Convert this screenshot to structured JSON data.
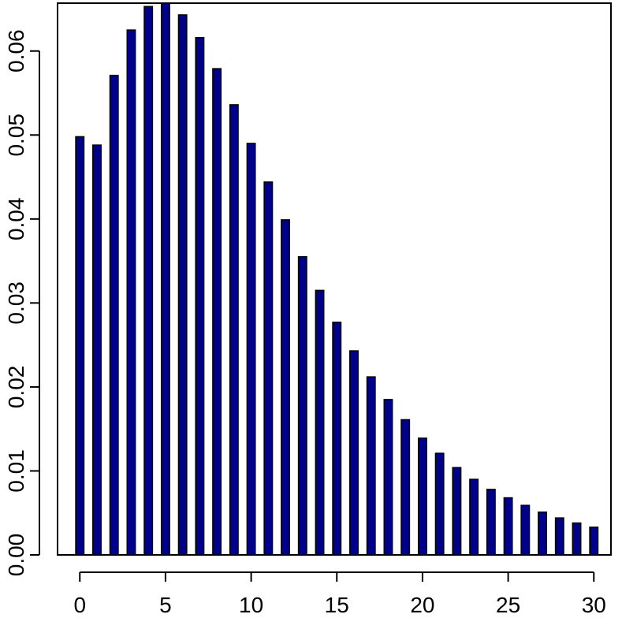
{
  "chart_data": {
    "type": "bar",
    "categories": [
      "0",
      "1",
      "2",
      "3",
      "4",
      "5",
      "6",
      "7",
      "8",
      "9",
      "10",
      "11",
      "12",
      "13",
      "14",
      "15",
      "16",
      "17",
      "18",
      "19",
      "20",
      "21",
      "22",
      "23",
      "24",
      "25",
      "26",
      "27",
      "28",
      "29",
      "30"
    ],
    "values": [
      0.0498,
      0.0488,
      0.0571,
      0.0625,
      0.0653,
      0.0657,
      0.0643,
      0.0616,
      0.0579,
      0.0536,
      0.049,
      0.0444,
      0.0399,
      0.0355,
      0.0315,
      0.0277,
      0.0243,
      0.0212,
      0.0185,
      0.0161,
      0.0139,
      0.0121,
      0.0104,
      0.009,
      0.0078,
      0.0068,
      0.0059,
      0.0051,
      0.0044,
      0.0038,
      0.0033
    ],
    "title": "",
    "xlabel": "",
    "ylabel": "",
    "xlim": [
      -1.3,
      31.0
    ],
    "ylim": [
      0,
      0.0657
    ],
    "x_ticks": [
      0,
      5,
      10,
      15,
      20,
      25,
      30
    ],
    "x_tick_labels": [
      "0",
      "5",
      "10",
      "15",
      "20",
      "25",
      "30"
    ],
    "y_ticks": [
      0,
      0.01,
      0.02,
      0.03,
      0.04,
      0.05,
      0.06
    ],
    "y_tick_labels": [
      "0.00",
      "0.01",
      "0.02",
      "0.03",
      "0.04",
      "0.05",
      "0.06"
    ],
    "bar_color": "#00008b",
    "grid": false,
    "legend": "none"
  }
}
